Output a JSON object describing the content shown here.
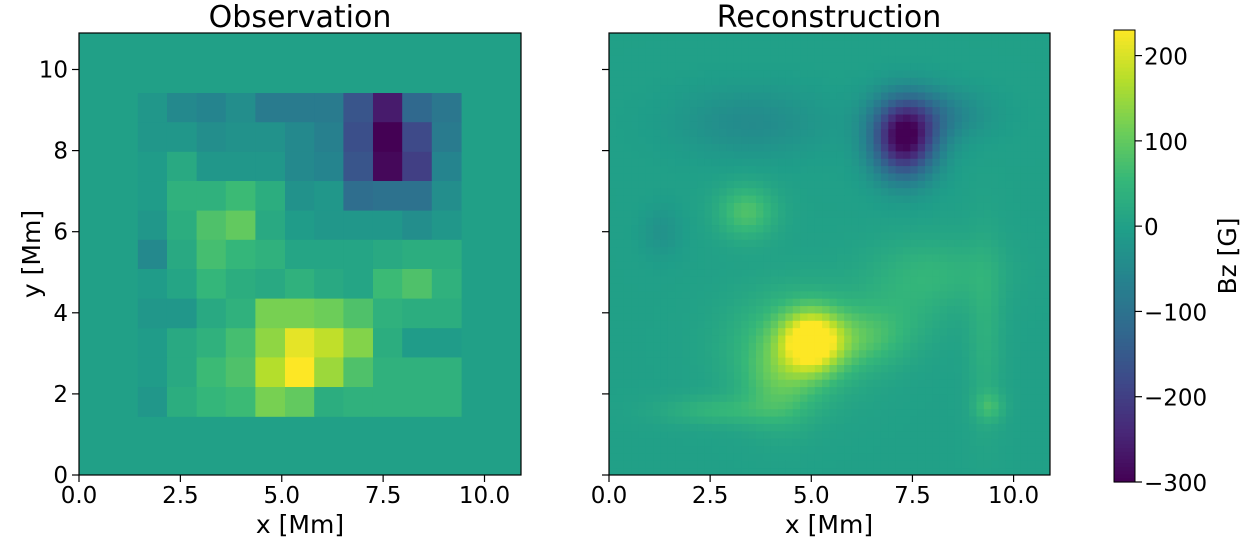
{
  "chart_data": [
    {
      "type": "heatmap",
      "title": "Observation",
      "xlabel": "x [Mm]",
      "ylabel": "y [Mm]",
      "xlim": [
        0,
        10.9
      ],
      "ylim": [
        0,
        10.9
      ],
      "xticks": [
        "0.0",
        "2.5",
        "5.0",
        "7.5",
        "10.0"
      ],
      "yticks": [
        "0",
        "2",
        "4",
        "6",
        "8",
        "10"
      ],
      "background_value": 0,
      "grid_x_edges": [
        1.45,
        2.17,
        2.9,
        3.62,
        4.35,
        5.08,
        5.8,
        6.52,
        7.25,
        7.97,
        8.7,
        9.42
      ],
      "grid_y_edges": [
        1.45,
        2.17,
        2.9,
        3.62,
        4.35,
        5.08,
        5.8,
        6.52,
        7.25,
        7.97,
        8.7,
        9.42
      ],
      "values_rows_top_to_bottom": [
        [
          -20,
          -50,
          -60,
          -40,
          -80,
          -80,
          -80,
          -160,
          -260,
          -120,
          -90
        ],
        [
          -20,
          -20,
          -40,
          -30,
          -30,
          -50,
          -70,
          -170,
          -300,
          -180,
          -80
        ],
        [
          -10,
          20,
          -20,
          -20,
          -20,
          -50,
          -60,
          -160,
          -290,
          -200,
          -60
        ],
        [
          -10,
          40,
          40,
          60,
          30,
          -30,
          -20,
          -110,
          -100,
          -100,
          -40
        ],
        [
          -20,
          30,
          80,
          100,
          20,
          -10,
          -20,
          -20,
          -20,
          -40,
          -20
        ],
        [
          -50,
          20,
          70,
          50,
          40,
          10,
          10,
          10,
          20,
          30,
          30
        ],
        [
          -10,
          10,
          50,
          30,
          20,
          40,
          20,
          10,
          60,
          80,
          40
        ],
        [
          -20,
          -20,
          20,
          40,
          120,
          120,
          110,
          80,
          40,
          30,
          30
        ],
        [
          -10,
          20,
          40,
          70,
          140,
          210,
          180,
          130,
          30,
          -10,
          -10
        ],
        [
          -10,
          20,
          60,
          80,
          170,
          230,
          150,
          80,
          40,
          40,
          40
        ],
        [
          -20,
          30,
          50,
          60,
          120,
          100,
          30,
          40,
          40,
          40,
          40
        ]
      ]
    },
    {
      "type": "heatmap",
      "title": "Reconstruction",
      "xlabel": "x [Mm]",
      "ylabel": "",
      "xlim": [
        0,
        10.9
      ],
      "ylim": [
        0,
        10.9
      ],
      "xticks": [
        "0.0",
        "2.5",
        "5.0",
        "7.5",
        "10.0"
      ],
      "background_value": 0,
      "features": [
        {
          "x": 7.3,
          "y": 8.3,
          "peak": -300,
          "sx": 0.55,
          "sy": 0.65
        },
        {
          "x": 8.0,
          "y": 8.9,
          "peak": -70,
          "sx": 0.9,
          "sy": 0.45
        },
        {
          "x": 3.5,
          "y": 8.7,
          "peak": -45,
          "sx": 1.3,
          "sy": 0.6
        },
        {
          "x": 5.0,
          "y": 3.3,
          "peak": 230,
          "sx": 0.5,
          "sy": 0.5
        },
        {
          "x": 4.6,
          "y": 3.2,
          "peak": 80,
          "sx": 1.1,
          "sy": 0.9
        },
        {
          "x": 6.2,
          "y": 3.4,
          "peak": 60,
          "sx": 0.8,
          "sy": 0.5
        },
        {
          "x": 4.2,
          "y": 2.2,
          "peak": 60,
          "sx": 0.6,
          "sy": 0.7
        },
        {
          "x": 3.4,
          "y": 6.5,
          "peak": 80,
          "sx": 0.5,
          "sy": 0.45
        },
        {
          "x": 2.7,
          "y": 1.6,
          "peak": 45,
          "sx": 1.0,
          "sy": 0.25
        },
        {
          "x": 9.4,
          "y": 1.7,
          "peak": 55,
          "sx": 0.25,
          "sy": 0.25
        },
        {
          "x": 9.3,
          "y": 3.5,
          "peak": 35,
          "sx": 0.3,
          "sy": 1.6
        },
        {
          "x": 8.0,
          "y": 5.0,
          "peak": 45,
          "sx": 1.1,
          "sy": 0.6
        },
        {
          "x": 1.3,
          "y": 6.0,
          "peak": -30,
          "sx": 0.35,
          "sy": 0.45
        },
        {
          "x": 7.2,
          "y": 4.0,
          "peak": 25,
          "sx": 0.8,
          "sy": 0.6
        }
      ]
    }
  ],
  "colorbar": {
    "label": "Bz [G]",
    "min": -300,
    "max": 230,
    "ticks": [
      {
        "value": 200,
        "label": "200"
      },
      {
        "value": 100,
        "label": "100"
      },
      {
        "value": 0,
        "label": "0"
      },
      {
        "value": -100,
        "label": "−100"
      },
      {
        "value": -200,
        "label": "−200"
      },
      {
        "value": -300,
        "label": "−300"
      }
    ],
    "colormap": "viridis",
    "colormap_stops": [
      "#440154",
      "#482878",
      "#3e4989",
      "#31688e",
      "#26828e",
      "#1f9e89",
      "#35b779",
      "#6ece58",
      "#b5de2b",
      "#fde725"
    ]
  }
}
